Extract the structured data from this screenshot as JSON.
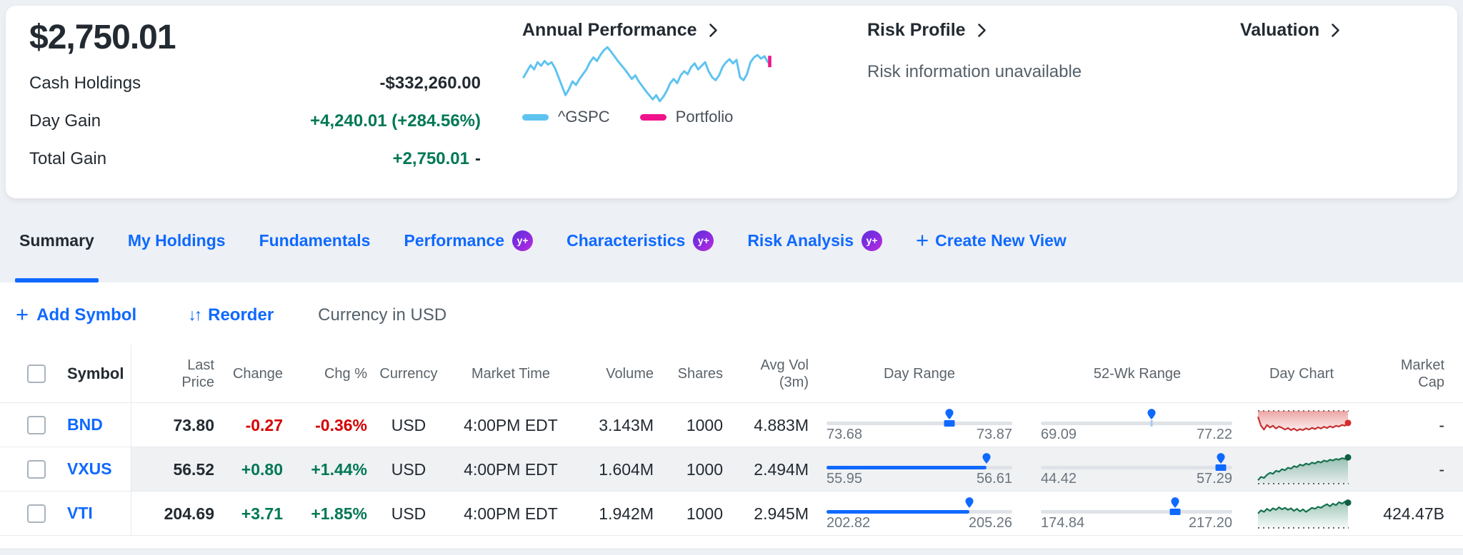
{
  "colors": {
    "accent": "#0f69ff",
    "positive": "#007855",
    "negative": "#d40000",
    "spark_up_line": "#15714e",
    "spark_down_line": "#c53030",
    "gspc_line": "#5fc3f0",
    "portfolio_line": "#f0128c"
  },
  "header": {
    "portfolio_value": "$2,750.01",
    "stats": [
      {
        "label": "Cash Holdings",
        "value": "-$332,260.00"
      },
      {
        "label": "Day Gain",
        "value": "+4,240.01 (+284.56%)"
      },
      {
        "label": "Total Gain",
        "value": "+2,750.01",
        "suffix": "-"
      }
    ],
    "performance": {
      "title": "Annual Performance",
      "legend": [
        {
          "label": "^GSPC",
          "color": "#5fc3f0"
        },
        {
          "label": "Portfolio",
          "color": "#f0128c"
        }
      ],
      "chart": {
        "mode": "line",
        "color": "#5fc3f0",
        "end_tick": "#f0128c",
        "points": [
          0.55,
          0.45,
          0.35,
          0.42,
          0.3,
          0.36,
          0.28,
          0.34,
          0.3,
          0.4,
          0.55,
          0.7,
          0.85,
          0.75,
          0.62,
          0.68,
          0.58,
          0.5,
          0.42,
          0.3,
          0.22,
          0.28,
          0.18,
          0.1,
          0.05,
          0.12,
          0.2,
          0.28,
          0.35,
          0.42,
          0.5,
          0.58,
          0.52,
          0.62,
          0.7,
          0.78,
          0.85,
          0.92,
          0.85,
          0.95,
          0.88,
          0.78,
          0.65,
          0.58,
          0.65,
          0.52,
          0.45,
          0.5,
          0.38,
          0.32,
          0.42,
          0.36,
          0.3,
          0.45,
          0.55,
          0.6,
          0.52,
          0.38,
          0.3,
          0.25,
          0.32,
          0.26,
          0.55,
          0.6,
          0.5,
          0.3,
          0.22,
          0.18,
          0.24,
          0.2,
          0.3
        ]
      }
    },
    "risk": {
      "title": "Risk Profile",
      "message": "Risk information unavailable"
    },
    "valuation": {
      "title": "Valuation"
    }
  },
  "tabs": {
    "items": [
      {
        "label": "Summary"
      },
      {
        "label": "My Holdings"
      },
      {
        "label": "Fundamentals"
      },
      {
        "label": "Performance",
        "badge": "y+"
      },
      {
        "label": "Characteristics",
        "badge": "y+"
      },
      {
        "label": "Risk Analysis",
        "badge": "y+"
      }
    ],
    "create_label": "Create New View"
  },
  "toolbar": {
    "add_symbol": "Add Symbol",
    "reorder": "Reorder",
    "currency_note": "Currency in USD"
  },
  "table": {
    "headers": {
      "symbol": "Symbol",
      "last_price": "Last\nPrice",
      "change": "Change",
      "chg_pct": "Chg %",
      "currency": "Currency",
      "market_time": "Market Time",
      "volume": "Volume",
      "shares": "Shares",
      "avg_vol": "Avg Vol\n(3m)",
      "day_range": "Day Range",
      "wk52_range": "52-Wk Range",
      "day_chart": "Day Chart",
      "market_cap": "Market\nCap"
    },
    "rows": [
      {
        "symbol": "BND",
        "last_price": "73.80",
        "change": "-0.27",
        "chg_pct": "-0.36%",
        "currency": "USD",
        "market_time": "4:00PM EDT",
        "volume": "3.143M",
        "shares": "1000",
        "avg_vol": "4.883M",
        "market_cap": "-",
        "day_range": {
          "low": "73.68",
          "high": "73.87",
          "pin": 66,
          "marker": 66
        },
        "wk_range": {
          "low": "69.09",
          "high": "77.22",
          "pin": 58,
          "tick": 58
        },
        "day_chart": {
          "theme": "down",
          "baseline": "top",
          "points": [
            0.2,
            0.55,
            0.7,
            0.52,
            0.62,
            0.55,
            0.66,
            0.58,
            0.63,
            0.7,
            0.64,
            0.72,
            0.66,
            0.74,
            0.68,
            0.72,
            0.65,
            0.7,
            0.63,
            0.68,
            0.61,
            0.66,
            0.59,
            0.64,
            0.57,
            0.62,
            0.55,
            0.58,
            0.52,
            0.55,
            0.44
          ]
        }
      },
      {
        "symbol": "VXUS",
        "last_price": "56.52",
        "change": "+0.80",
        "chg_pct": "+1.44%",
        "currency": "USD",
        "market_time": "4:00PM EDT",
        "volume": "1.604M",
        "shares": "1000",
        "avg_vol": "2.494M",
        "market_cap": "-",
        "day_range": {
          "low": "55.95",
          "high": "56.61",
          "pin": 86,
          "fill": [
            0,
            86
          ]
        },
        "wk_range": {
          "low": "44.42",
          "high": "57.29",
          "pin": 94,
          "marker": 94
        },
        "day_chart": {
          "theme": "up",
          "baseline": "bottom",
          "points": [
            0.95,
            0.82,
            0.86,
            0.74,
            0.66,
            0.7,
            0.58,
            0.62,
            0.52,
            0.56,
            0.46,
            0.5,
            0.4,
            0.44,
            0.34,
            0.38,
            0.3,
            0.34,
            0.26,
            0.3,
            0.22,
            0.26,
            0.18,
            0.22,
            0.15,
            0.18,
            0.12,
            0.15,
            0.09,
            0.12,
            0.06
          ]
        }
      },
      {
        "symbol": "VTI",
        "last_price": "204.69",
        "change": "+3.71",
        "chg_pct": "+1.85%",
        "currency": "USD",
        "market_time": "4:00PM EDT",
        "volume": "1.942M",
        "shares": "1000",
        "avg_vol": "2.945M",
        "market_cap": "424.47B",
        "day_range": {
          "low": "202.82",
          "high": "205.26",
          "pin": 77,
          "fill": [
            0,
            77
          ]
        },
        "wk_range": {
          "low": "174.84",
          "high": "217.20",
          "pin": 70,
          "marker": 70
        },
        "day_chart": {
          "theme": "up",
          "baseline": "bottom",
          "points": [
            0.52,
            0.4,
            0.46,
            0.34,
            0.42,
            0.32,
            0.38,
            0.28,
            0.36,
            0.3,
            0.38,
            0.32,
            0.42,
            0.34,
            0.44,
            0.36,
            0.46,
            0.38,
            0.3,
            0.34,
            0.26,
            0.3,
            0.22,
            0.16,
            0.24,
            0.14,
            0.2,
            0.08,
            0.14,
            0.06,
            0.1
          ]
        }
      }
    ]
  }
}
